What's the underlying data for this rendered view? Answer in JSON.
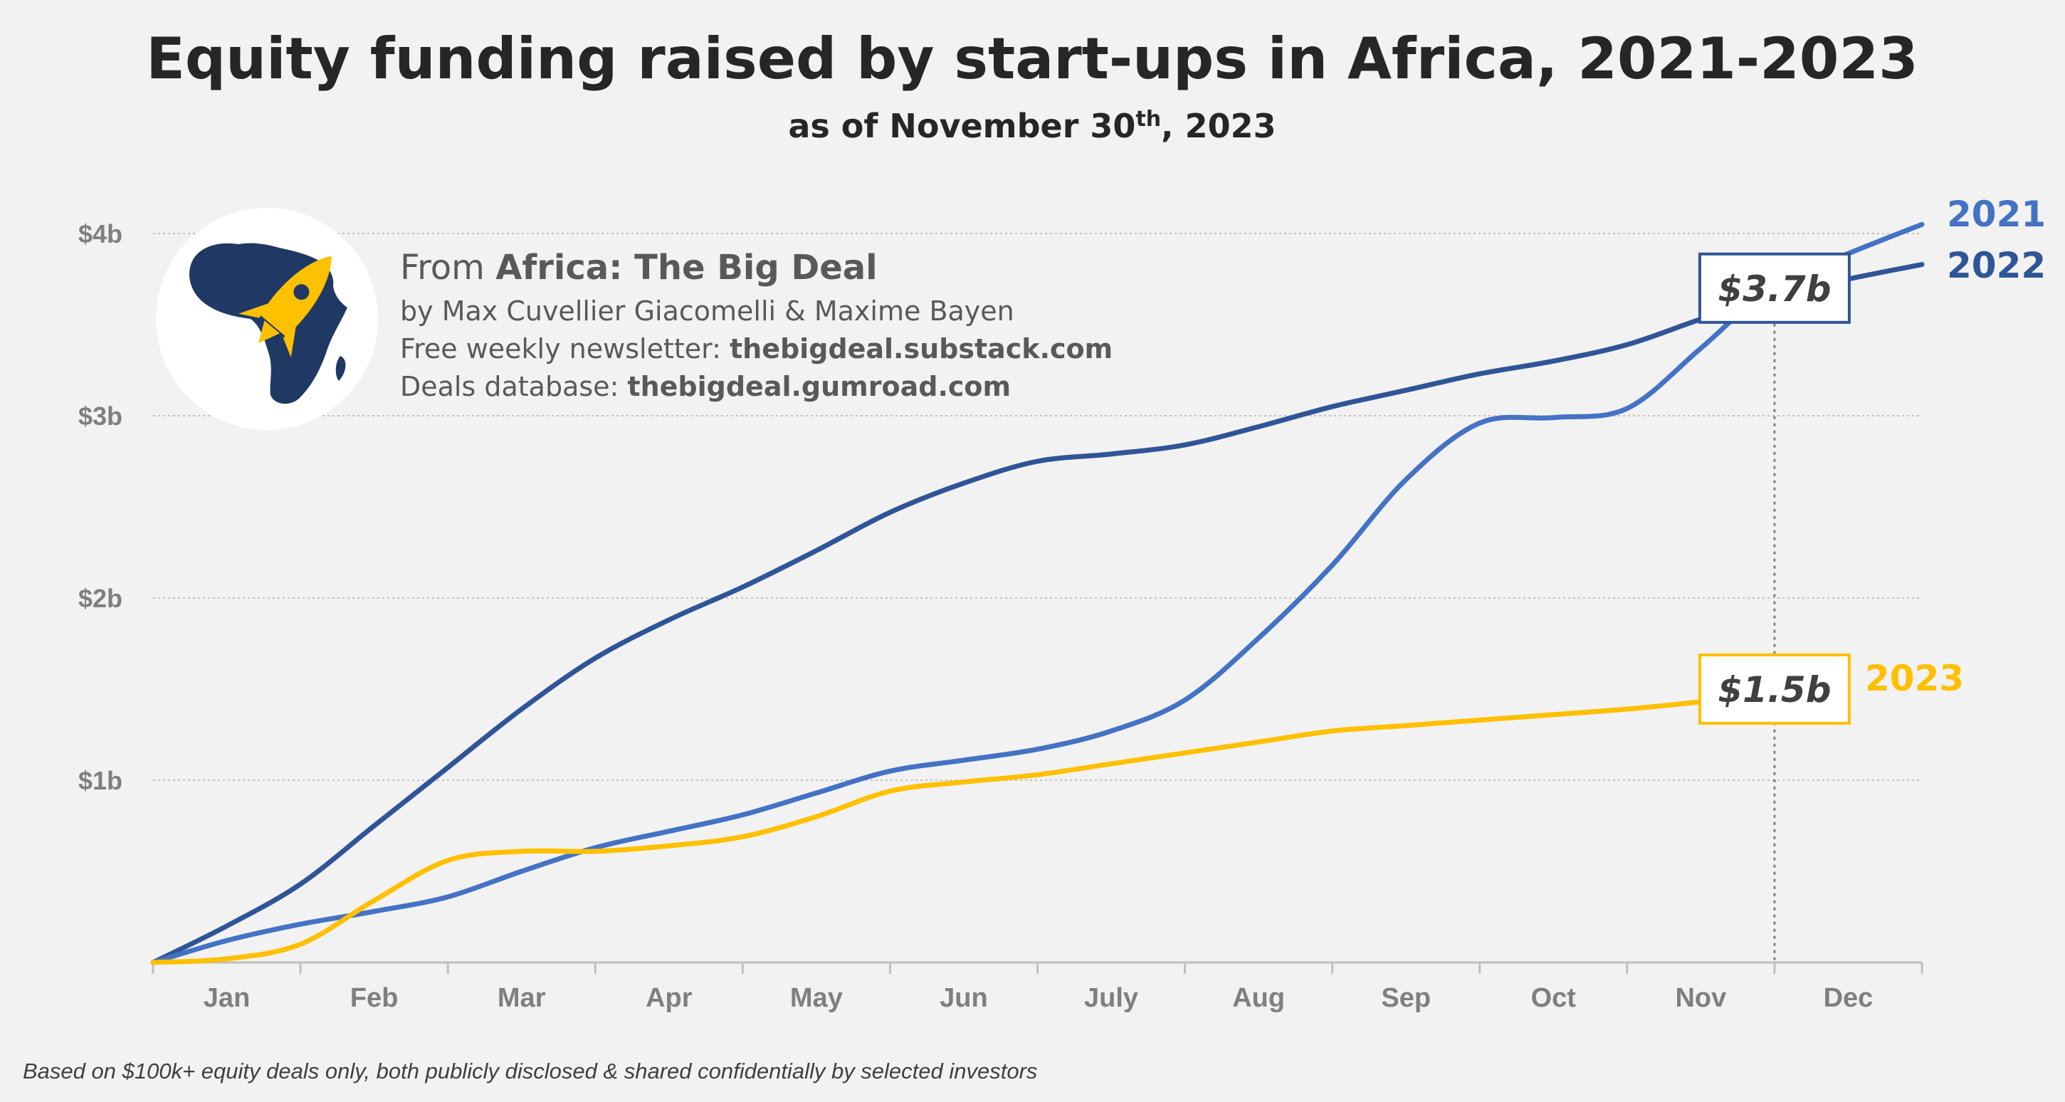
{
  "chart_data": {
    "type": "line",
    "title": "Equity funding raised by start-ups in Africa, 2021-2023",
    "subtitle_main": "as of November 30",
    "subtitle_sup": "th",
    "subtitle_end": ", 2023",
    "categories": [
      "Jan",
      "Feb",
      "Mar",
      "Apr",
      "May",
      "Jun",
      "July",
      "Aug",
      "Sep",
      "Oct",
      "Nov",
      "Dec"
    ],
    "y_ticks": [
      {
        "value": 1,
        "label": "$1b"
      },
      {
        "value": 2,
        "label": "$2b"
      },
      {
        "value": 3,
        "label": "$3b"
      },
      {
        "value": 4,
        "label": "$4b"
      }
    ],
    "ylim": [
      0,
      4
    ],
    "x_unit": "months",
    "grid": true,
    "series": [
      {
        "name": "2021",
        "color": "#4472c4",
        "x": [
          0,
          0.5,
          1,
          1.5,
          2,
          2.5,
          3,
          3.5,
          4,
          4.5,
          5,
          5.5,
          6,
          6.5,
          7,
          7.5,
          8,
          8.5,
          9,
          9.5,
          10,
          10.5,
          11,
          11.5,
          12
        ],
        "y": [
          0,
          0.12,
          0.21,
          0.28,
          0.36,
          0.5,
          0.63,
          0.72,
          0.81,
          0.93,
          1.05,
          1.11,
          1.17,
          1.27,
          1.44,
          1.78,
          2.18,
          2.65,
          2.96,
          2.99,
          3.04,
          3.37,
          3.72,
          3.89,
          4.05
        ]
      },
      {
        "name": "2022",
        "color": "#2f5597",
        "x": [
          0,
          0.5,
          1,
          1.5,
          2,
          2.5,
          3,
          3.5,
          4,
          4.5,
          5,
          5.5,
          6,
          6.5,
          7,
          7.5,
          8,
          8.5,
          9,
          9.5,
          10,
          10.5,
          11,
          11.5,
          12
        ],
        "y": [
          0,
          0.2,
          0.43,
          0.75,
          1.07,
          1.39,
          1.67,
          1.88,
          2.06,
          2.26,
          2.47,
          2.63,
          2.75,
          2.79,
          2.84,
          2.94,
          3.05,
          3.14,
          3.23,
          3.3,
          3.39,
          3.53,
          3.66,
          3.75,
          3.83
        ]
      },
      {
        "name": "2023",
        "color": "#ffc000",
        "x": [
          0,
          0.5,
          1,
          1.5,
          2,
          2.5,
          3,
          3.5,
          4,
          4.5,
          5,
          5.5,
          6,
          6.5,
          7,
          7.5,
          8,
          8.5,
          9,
          9.5,
          10,
          10.5,
          11
        ],
        "y": [
          0,
          0.02,
          0.1,
          0.34,
          0.56,
          0.61,
          0.61,
          0.64,
          0.69,
          0.8,
          0.94,
          0.99,
          1.03,
          1.09,
          1.15,
          1.21,
          1.27,
          1.3,
          1.33,
          1.36,
          1.39,
          1.43,
          1.47
        ]
      }
    ],
    "callouts": [
      {
        "label": "$3.7b",
        "x": 11,
        "y": 3.7,
        "border": "#2f5597"
      },
      {
        "label": "$1.5b",
        "x": 11,
        "y": 1.5,
        "border": "#ffc000"
      }
    ],
    "reference_line": {
      "x": 11
    },
    "source": {
      "prefix": "From ",
      "name": "Africa: The Big Deal",
      "byline": "by Max Cuvellier Giacomelli & Maxime Bayen",
      "newsletter_label": "Free weekly newsletter: ",
      "newsletter_url": "thebigdeal.substack.com",
      "database_label": "Deals database: ",
      "database_url": "thebigdeal.gumroad.com"
    },
    "footnote": "Based on $100k+ equity deals only, both publicly disclosed & shared confidentially by selected investors",
    "logo_icon": "africa-rocket-icon",
    "colors": {
      "navy": "#1f3864",
      "gold": "#ffc000"
    }
  }
}
